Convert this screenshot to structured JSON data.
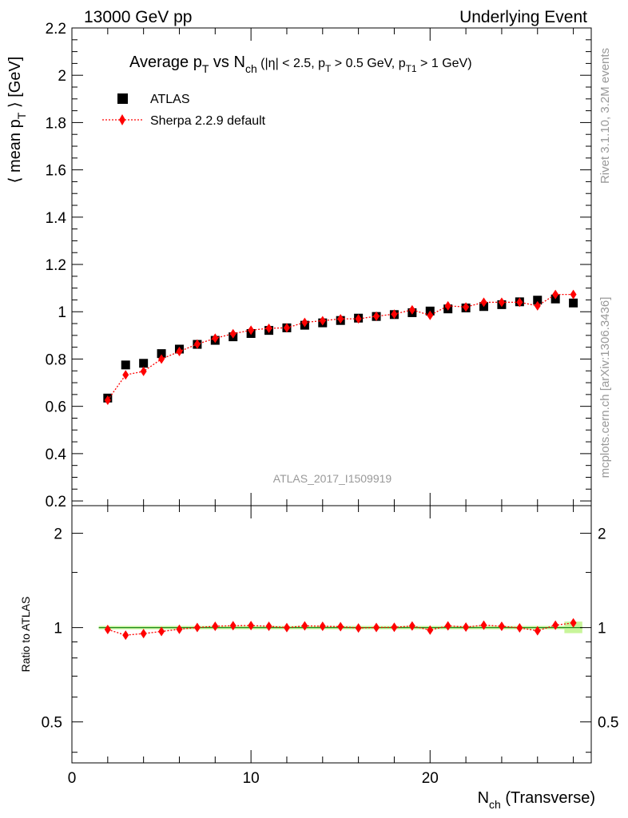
{
  "header": {
    "left": "13000 GeV pp",
    "right": "Underlying Event"
  },
  "side_text": {
    "rivet": "Rivet 3.1.10,  3.2M events",
    "mcplots": "mcplots.cern.ch [arXiv:1306.3436]"
  },
  "watermark": "ATLAS_2017_I1509919",
  "chart_data": [
    {
      "type": "scatter",
      "title": "Average p_T vs N_ch (|η| < 2.5, p_T > 0.5 GeV, p_T1 > 1 GeV)",
      "title_parts": {
        "main": "Average p",
        "sub1": "T",
        "vs": " vs N",
        "sub2": "ch",
        "cut1": " (|η| < 2.5, p",
        "sub3": "T",
        "cut2": " > 0.5 GeV, p",
        "sub4": "T1",
        "cut3": " > 1 GeV)"
      },
      "ylabel": "⟨ mean p_T ⟩ [GeV]",
      "ylabel_parts": {
        "a": "⟨ mean p",
        "sub": "T",
        "b": " ⟩ [GeV]"
      },
      "xlim": [
        0,
        29
      ],
      "ylim": [
        0.18,
        2.2
      ],
      "yticks": [
        0.2,
        0.4,
        0.6,
        0.8,
        1,
        1.2,
        1.4,
        1.6,
        1.8,
        2,
        2.2
      ],
      "ytick_labels": [
        "0.2",
        "0.4",
        "0.6",
        "0.8",
        "1",
        "1.2",
        "1.4",
        "1.6",
        "1.8",
        "2",
        "2.2"
      ],
      "legend_position": "top-left",
      "x": [
        2,
        3,
        4,
        5,
        6,
        7,
        8,
        9,
        10,
        11,
        12,
        13,
        14,
        15,
        16,
        17,
        18,
        19,
        20,
        21,
        22,
        23,
        24,
        25,
        26,
        27,
        28
      ],
      "series": [
        {
          "name": "ATLAS",
          "marker": "square",
          "color": "#000000",
          "values": [
            0.635,
            0.775,
            0.782,
            0.823,
            0.842,
            0.862,
            0.879,
            0.894,
            0.908,
            0.921,
            0.932,
            0.943,
            0.953,
            0.963,
            0.973,
            0.98,
            0.988,
            0.996,
            1.003,
            1.012,
            1.016,
            1.022,
            1.03,
            1.042,
            1.049,
            1.054,
            1.037
          ]
        },
        {
          "name": "Sherpa 2.2.9 default",
          "marker": "diamond",
          "line": "dotted",
          "color": "#ff0000",
          "values": [
            0.626,
            0.733,
            0.748,
            0.8,
            0.832,
            0.863,
            0.888,
            0.907,
            0.922,
            0.93,
            0.932,
            0.955,
            0.962,
            0.97,
            0.97,
            0.981,
            0.99,
            1.008,
            0.985,
            1.025,
            1.02,
            1.04,
            1.04,
            1.04,
            1.025,
            1.073,
            1.073
          ]
        }
      ]
    },
    {
      "type": "scatter",
      "title": "",
      "ylabel": "Ratio to ATLAS",
      "xlabel": "N_ch (Transverse)",
      "xlabel_parts": {
        "a": "N",
        "sub": "ch",
        "b": " (Transverse)"
      },
      "xlim": [
        0,
        29
      ],
      "xticks": [
        0,
        10,
        20
      ],
      "xtick_labels": [
        "0",
        "10",
        "20"
      ],
      "ylim": [
        0.37,
        2.45
      ],
      "y_scale": "log",
      "yticks": [
        0.5,
        1,
        2
      ],
      "ytick_labels": [
        "0.5",
        "1",
        "2"
      ],
      "reference_band": {
        "value": 1,
        "color": "#c8f59a",
        "line_color": "#228b22"
      },
      "x": [
        2,
        3,
        4,
        5,
        6,
        7,
        8,
        9,
        10,
        11,
        12,
        13,
        14,
        15,
        16,
        17,
        18,
        19,
        20,
        21,
        22,
        23,
        24,
        25,
        26,
        27,
        28
      ],
      "series": [
        {
          "name": "Sherpa 2.2.9 default",
          "marker": "diamond",
          "line": "dotted",
          "color": "#ff0000",
          "values": [
            0.986,
            0.946,
            0.957,
            0.972,
            0.988,
            1.001,
            1.01,
            1.014,
            1.015,
            1.01,
            1.0,
            1.013,
            1.01,
            1.007,
            0.997,
            1.001,
            1.002,
            1.012,
            0.982,
            1.013,
            1.004,
            1.018,
            1.01,
            0.998,
            0.977,
            1.018,
            1.035
          ]
        }
      ]
    }
  ]
}
